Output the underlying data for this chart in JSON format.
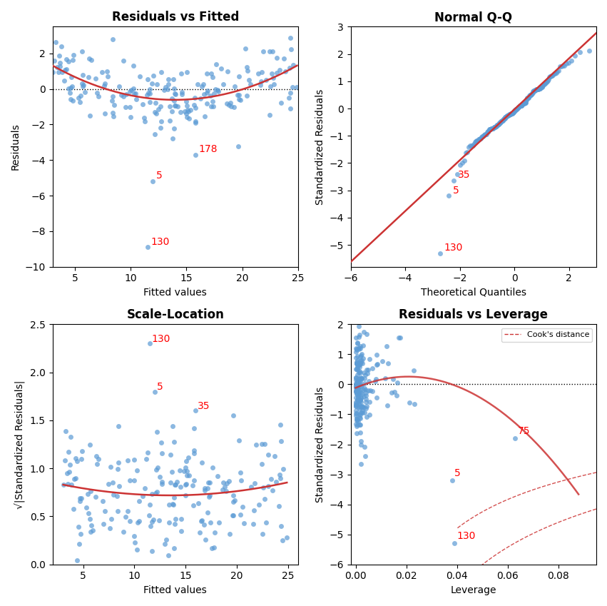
{
  "dot_color": "#5b9bd5",
  "dot_alpha": 0.7,
  "dot_size": 25,
  "red_line_color": "#cc3333",
  "red_dashed_color": "#cc3333",
  "annotation_color": "red",
  "annotation_fontsize": 10,
  "title_fontsize": 12,
  "label_fontsize": 10,
  "background_color": "#ffffff",
  "titles": [
    "Residuals vs Fitted",
    "Normal Q-Q",
    "Scale-Location",
    "Residuals vs Leverage"
  ],
  "xlabels": [
    "Fitted values",
    "Theoretical Quantiles",
    "Fitted values",
    "Leverage"
  ],
  "ylabels": [
    "Residuals",
    "Standardized Residuals",
    "√|Standardized Residuals|",
    "Standardized Residuals"
  ],
  "n_obs": 200,
  "seed": 42
}
